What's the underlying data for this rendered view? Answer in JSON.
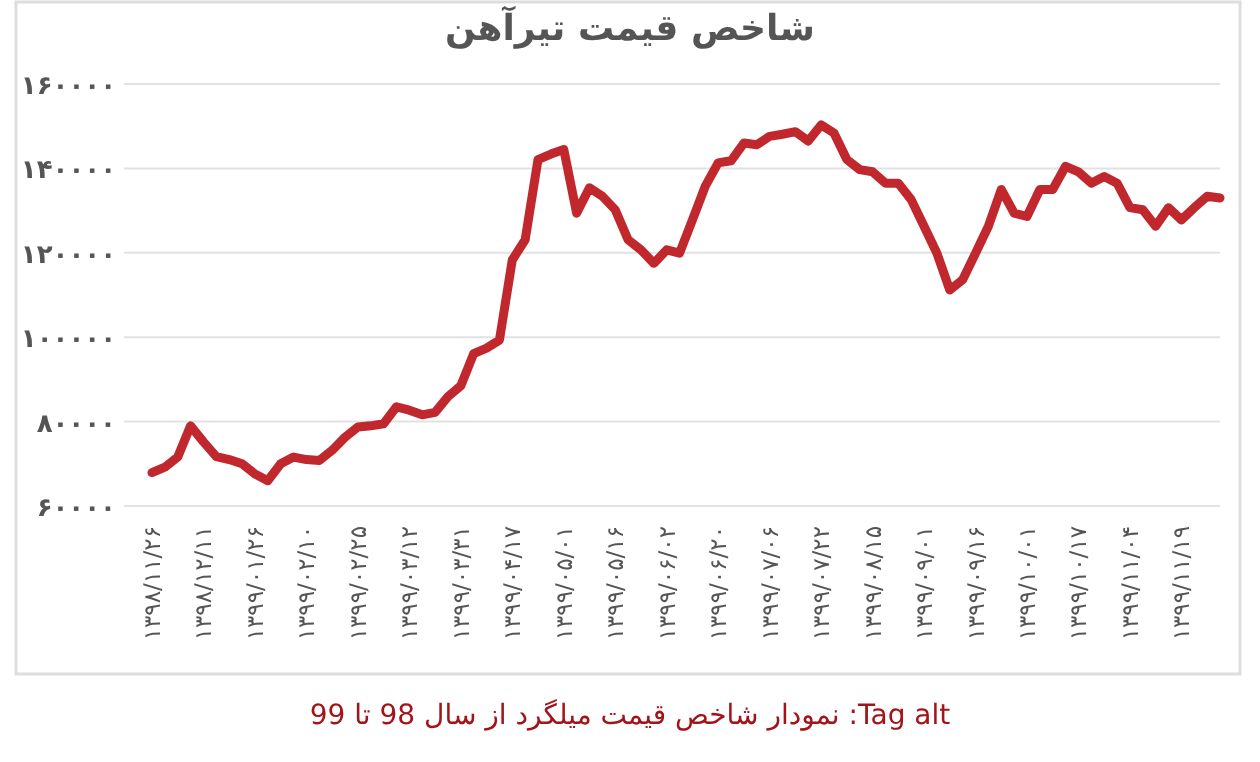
{
  "chart_data": {
    "type": "line",
    "title": "شاخص قیمت تیرآهن",
    "categories": [
      "۱۳۹۸/۱۱/۲۶",
      null,
      null,
      null,
      "۱۳۹۸/۱۲/۱۱",
      null,
      null,
      null,
      "۱۳۹۹/۰۱/۲۶",
      null,
      null,
      null,
      "۱۳۹۹/۰۲/۱۰",
      null,
      null,
      null,
      "۱۳۹۹/۰۲/۲۵",
      null,
      null,
      null,
      "۱۳۹۹/۰۳/۱۲",
      null,
      null,
      null,
      "۱۳۹۹/۰۳/۳۱",
      null,
      null,
      null,
      "۱۳۹۹/۰۴/۱۷",
      null,
      null,
      null,
      "۱۳۹۹/۰۵/۰۱",
      null,
      null,
      null,
      "۱۳۹۹/۰۵/۱۶",
      null,
      null,
      null,
      "۱۳۹۹/۰۶/۰۲",
      null,
      null,
      null,
      "۱۳۹۹/۰۶/۲۰",
      null,
      null,
      null,
      "۱۳۹۹/۰۷/۰۶",
      null,
      null,
      null,
      "۱۳۹۹/۰۷/۲۲",
      null,
      null,
      null,
      "۱۳۹۹/۰۸/۱۵",
      null,
      null,
      null,
      "۱۳۹۹/۰۹/۰۱",
      null,
      null,
      null,
      "۱۳۹۹/۰۹/۱۶",
      null,
      null,
      null,
      "۱۳۹۹/۱۰/۰۱",
      null,
      null,
      null,
      "۱۳۹۹/۱۰/۱۷",
      null,
      null,
      null,
      "۱۳۹۹/۱۱/۰۴",
      null,
      null,
      null,
      "۱۳۹۹/۱۱/۱۹",
      null,
      null,
      null
    ],
    "series": [
      {
        "color": "#c0282d",
        "values": [
          67900,
          69200,
          71600,
          79000,
          75200,
          71700,
          71000,
          70000,
          67600,
          66000,
          70000,
          71600,
          71000,
          70800,
          73200,
          76300,
          78700,
          79000,
          79500,
          83500,
          82700,
          81600,
          82200,
          85900,
          88500,
          96100,
          97400,
          99300,
          118300,
          123100,
          142100,
          143400,
          144500,
          129400,
          135400,
          133400,
          130200,
          123100,
          120700,
          117500,
          120700,
          119900,
          127800,
          135800,
          141300,
          141800,
          146000,
          145600,
          147600,
          148100,
          148700,
          146500,
          150300,
          148400,
          142100,
          139700,
          139200,
          136500,
          136500,
          132600,
          126300,
          119900,
          111200,
          113600,
          119900,
          126300,
          135000,
          129400,
          128600,
          135000,
          135000,
          140500,
          139200,
          136500,
          138100,
          136500,
          130700,
          130200,
          126300,
          130700,
          127800,
          130700,
          133400,
          133000
        ]
      }
    ],
    "ylim": [
      60000,
      160000
    ],
    "yticks": [
      {
        "value": 60000,
        "label": "۶۰۰۰۰"
      },
      {
        "value": 80000,
        "label": "۸۰۰۰۰"
      },
      {
        "value": 100000,
        "label": "۱۰۰۰۰۰"
      },
      {
        "value": 120000,
        "label": "۱۲۰۰۰۰"
      },
      {
        "value": 140000,
        "label": "۱۴۰۰۰۰"
      },
      {
        "value": 160000,
        "label": "۱۶۰۰۰۰"
      }
    ],
    "grid": "y",
    "annotations": [
      "Tag alt: نمودار شاخص قیمت میلگرد از سال 98 تا 99"
    ]
  }
}
